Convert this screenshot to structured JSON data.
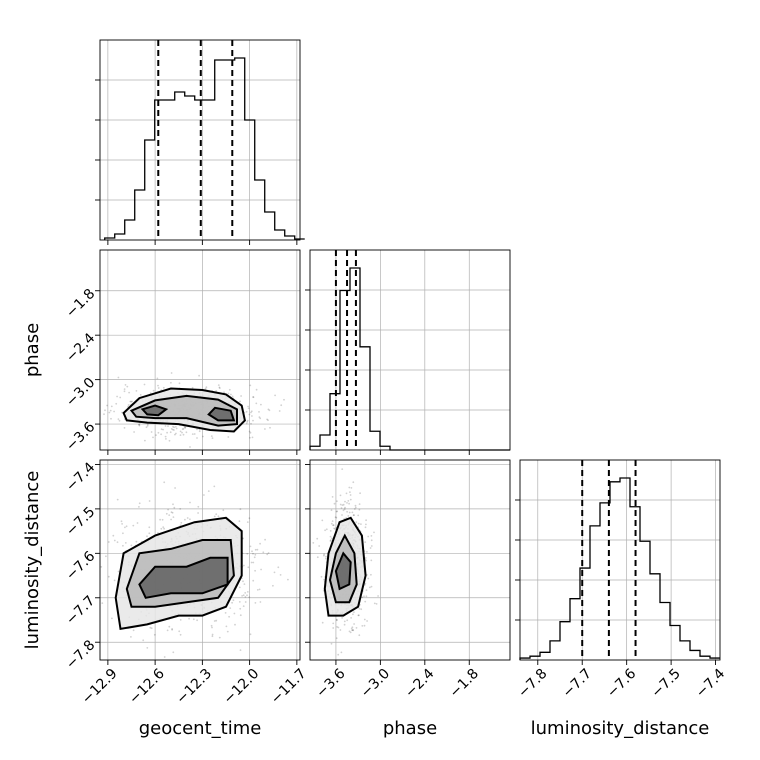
{
  "chart_data": {
    "type": "corner",
    "parameters": [
      "geocent_time",
      "phase",
      "luminosity_distance"
    ],
    "axes": {
      "geocent_time": {
        "range": [
          -12.95,
          -11.68
        ],
        "ticks": [
          -12.9,
          -12.6,
          -12.3,
          -12.0,
          -11.7
        ],
        "tick_labels": [
          "−12.9",
          "−12.6",
          "−12.3",
          "−12.0",
          "−11.7"
        ]
      },
      "phase": {
        "range": [
          -3.95,
          -1.25
        ],
        "ticks": [
          -3.6,
          -3.0,
          -2.4,
          -1.8
        ],
        "tick_labels": [
          "−3.6",
          "−3.0",
          "−2.4",
          "−1.8"
        ]
      },
      "luminosity_distance": {
        "range": [
          -7.84,
          -7.39
        ],
        "ticks": [
          -7.8,
          -7.7,
          -7.6,
          -7.5,
          -7.4
        ],
        "tick_labels": [
          "−7.8",
          "−7.7",
          "−7.6",
          "−7.5",
          "−7.4"
        ]
      }
    },
    "y_tick_labels": {
      "phase_row": [
        "−1.8",
        "−2.4",
        "−3.0",
        "−3.6"
      ],
      "luminosity_distance_row": [
        "−7.4",
        "−7.5",
        "−7.6",
        "−7.7",
        "−7.8"
      ]
    },
    "histograms": {
      "geocent_time": {
        "bin_edges_start": -12.92,
        "bin_width": 0.0635,
        "counts": [
          0.01,
          0.03,
          0.1,
          0.25,
          0.5,
          0.7,
          0.7,
          0.74,
          0.72,
          0.7,
          0.7,
          0.9,
          0.9,
          0.91,
          0.6,
          0.3,
          0.14,
          0.05,
          0.02,
          0.005
        ],
        "quantiles": [
          -12.58,
          -12.31,
          -12.11
        ]
      },
      "phase": {
        "bin_edges_start": -3.95,
        "bin_width": 0.135,
        "counts": [
          0.02,
          0.08,
          0.3,
          0.85,
          0.97,
          0.55,
          0.1,
          0.02,
          0.0,
          0.0,
          0.0,
          0.0,
          0.0,
          0.0,
          0.0,
          0.0,
          0.0,
          0.0,
          0.0,
          0.0
        ],
        "quantiles": [
          -3.6,
          -3.45,
          -3.33
        ]
      },
      "luminosity_distance": {
        "bin_edges_start": -7.84,
        "bin_width": 0.0225,
        "counts": [
          0.01,
          0.02,
          0.04,
          0.1,
          0.2,
          0.32,
          0.48,
          0.7,
          0.82,
          0.93,
          0.95,
          0.8,
          0.62,
          0.45,
          0.3,
          0.18,
          0.1,
          0.05,
          0.02,
          0.01
        ],
        "quantiles": [
          -7.7,
          -7.64,
          -7.58
        ]
      }
    },
    "contours": {
      "phase_vs_geocent_time": [
        {
          "level": "outer",
          "points": [
            [
              -12.8,
              -3.45
            ],
            [
              -12.7,
              -3.25
            ],
            [
              -12.5,
              -3.12
            ],
            [
              -12.3,
              -3.14
            ],
            [
              -12.15,
              -3.2
            ],
            [
              -12.05,
              -3.35
            ],
            [
              -12.03,
              -3.55
            ],
            [
              -12.1,
              -3.7
            ],
            [
              -12.25,
              -3.68
            ],
            [
              -12.45,
              -3.6
            ],
            [
              -12.65,
              -3.58
            ],
            [
              -12.78,
              -3.55
            ]
          ]
        },
        {
          "level": "middle",
          "points": [
            [
              -12.75,
              -3.42
            ],
            [
              -12.6,
              -3.28
            ],
            [
              -12.4,
              -3.22
            ],
            [
              -12.2,
              -3.27
            ],
            [
              -12.08,
              -3.4
            ],
            [
              -12.08,
              -3.6
            ],
            [
              -12.2,
              -3.62
            ],
            [
              -12.4,
              -3.52
            ],
            [
              -12.6,
              -3.52
            ],
            [
              -12.72,
              -3.5
            ]
          ]
        },
        {
          "level": "inner",
          "points": [
            [
              -12.68,
              -3.4
            ],
            [
              -12.6,
              -3.35
            ],
            [
              -12.53,
              -3.4
            ],
            [
              -12.58,
              -3.48
            ],
            [
              -12.65,
              -3.47
            ]
          ]
        },
        {
          "level": "inner",
          "points": [
            [
              -12.22,
              -3.38
            ],
            [
              -12.12,
              -3.42
            ],
            [
              -12.1,
              -3.55
            ],
            [
              -12.2,
              -3.55
            ],
            [
              -12.26,
              -3.47
            ]
          ]
        }
      ],
      "luminosity_distance_vs_geocent_time": [
        {
          "level": "outer",
          "points": [
            [
              -12.85,
              -7.7
            ],
            [
              -12.8,
              -7.6
            ],
            [
              -12.6,
              -7.56
            ],
            [
              -12.35,
              -7.53
            ],
            [
              -12.15,
              -7.52
            ],
            [
              -12.05,
              -7.55
            ],
            [
              -12.05,
              -7.65
            ],
            [
              -12.15,
              -7.72
            ],
            [
              -12.3,
              -7.74
            ],
            [
              -12.45,
              -7.74
            ],
            [
              -12.65,
              -7.76
            ],
            [
              -12.82,
              -7.77
            ]
          ]
        },
        {
          "level": "middle",
          "points": [
            [
              -12.78,
              -7.68
            ],
            [
              -12.7,
              -7.6
            ],
            [
              -12.5,
              -7.59
            ],
            [
              -12.3,
              -7.57
            ],
            [
              -12.12,
              -7.57
            ],
            [
              -12.1,
              -7.65
            ],
            [
              -12.2,
              -7.7
            ],
            [
              -12.4,
              -7.71
            ],
            [
              -12.6,
              -7.72
            ],
            [
              -12.75,
              -7.72
            ]
          ]
        },
        {
          "level": "inner",
          "points": [
            [
              -12.7,
              -7.67
            ],
            [
              -12.6,
              -7.63
            ],
            [
              -12.4,
              -7.63
            ],
            [
              -12.25,
              -7.61
            ],
            [
              -12.14,
              -7.61
            ],
            [
              -12.14,
              -7.67
            ],
            [
              -12.3,
              -7.69
            ],
            [
              -12.5,
              -7.69
            ],
            [
              -12.66,
              -7.7
            ]
          ]
        }
      ],
      "luminosity_distance_vs_phase": [
        {
          "level": "outer",
          "points": [
            [
              -3.75,
              -7.68
            ],
            [
              -3.7,
              -7.6
            ],
            [
              -3.55,
              -7.53
            ],
            [
              -3.4,
              -7.52
            ],
            [
              -3.25,
              -7.56
            ],
            [
              -3.2,
              -7.65
            ],
            [
              -3.3,
              -7.72
            ],
            [
              -3.5,
              -7.74
            ],
            [
              -3.7,
              -7.74
            ]
          ]
        },
        {
          "level": "middle",
          "points": [
            [
              -3.68,
              -7.66
            ],
            [
              -3.6,
              -7.6
            ],
            [
              -3.48,
              -7.56
            ],
            [
              -3.35,
              -7.6
            ],
            [
              -3.32,
              -7.67
            ],
            [
              -3.42,
              -7.71
            ],
            [
              -3.6,
              -7.71
            ]
          ]
        },
        {
          "level": "inner",
          "points": [
            [
              -3.6,
              -7.64
            ],
            [
              -3.5,
              -7.6
            ],
            [
              -3.4,
              -7.62
            ],
            [
              -3.42,
              -7.67
            ],
            [
              -3.55,
              -7.68
            ]
          ]
        }
      ]
    },
    "scatter_centers": {
      "phase_vs_geocent_time": {
        "x_mean": -12.38,
        "x_sd": 0.2,
        "y_mean": -3.42,
        "y_sd": 0.14
      },
      "luminosity_distance_vs_geocent_time": {
        "x_mean": -12.4,
        "x_sd": 0.2,
        "y_mean": -7.64,
        "y_sd": 0.06
      },
      "luminosity_distance_vs_phase": {
        "x_mean": -3.45,
        "x_sd": 0.13,
        "y_mean": -7.63,
        "y_sd": 0.06
      }
    },
    "grid": true
  }
}
